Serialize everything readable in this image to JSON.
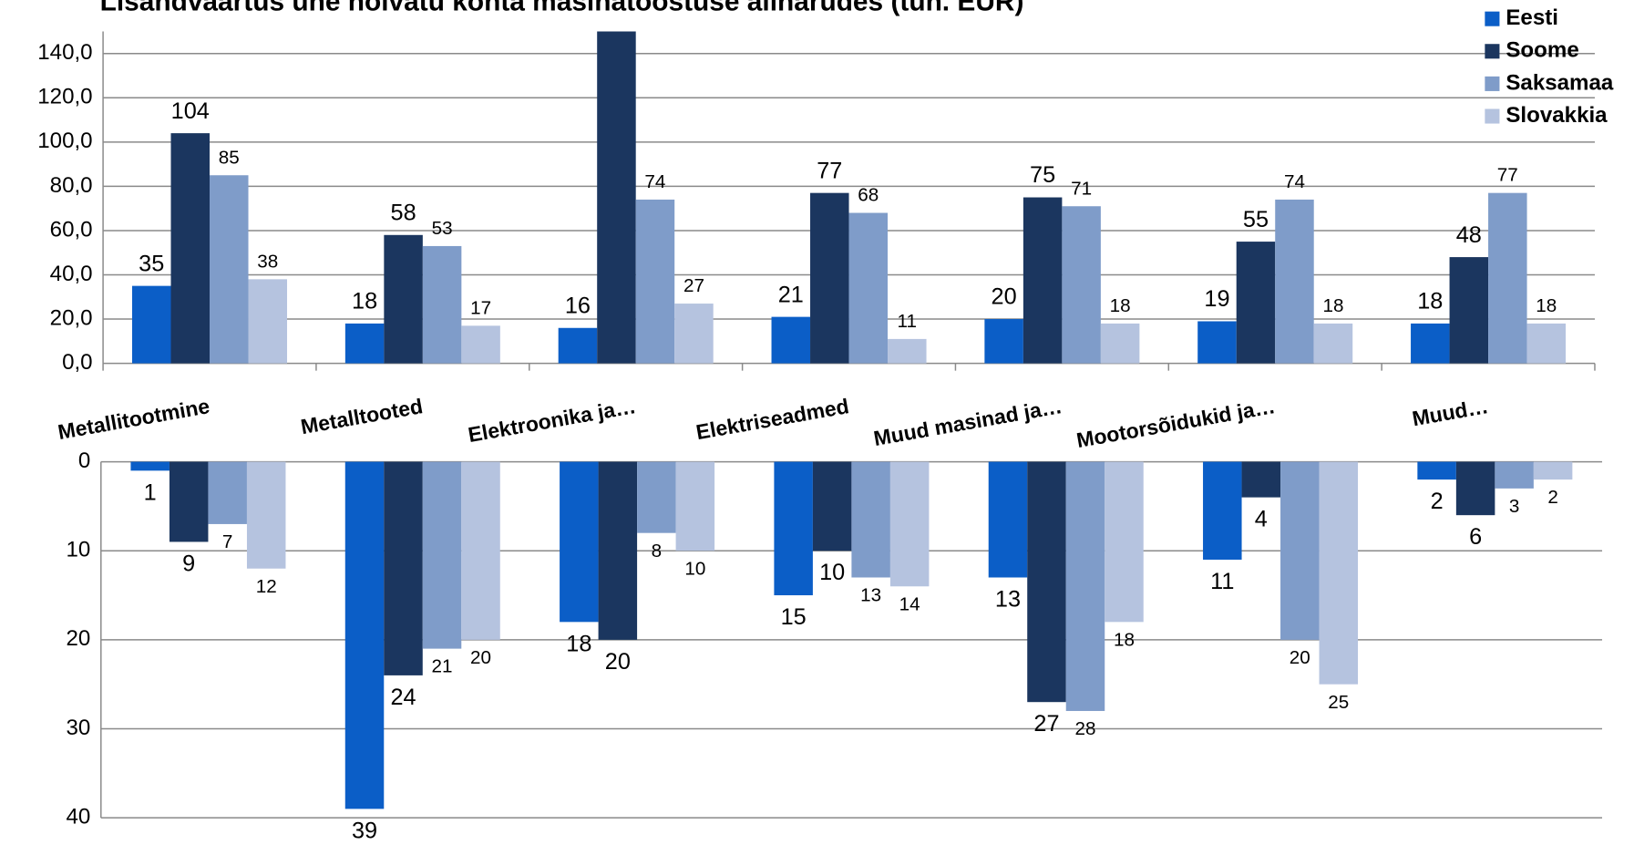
{
  "chart_data": [
    {
      "type": "bar",
      "title": "Lisandväärtus ühe hõivatu kohta masinatööstuse allharudes (tuh. EUR)",
      "categories": [
        "Metallitootmine",
        "Metalltooted",
        "Elektroonika ja…",
        "Elektriseadmed",
        "Muud masinad ja…",
        "Mootorsõidukid ja…",
        "Muud…"
      ],
      "series": [
        {
          "name": "Eesti",
          "color": "#0b5ec7",
          "values": [
            35,
            18,
            16,
            21,
            20,
            19,
            18
          ]
        },
        {
          "name": "Soome",
          "color": "#1b365f",
          "values": [
            104,
            58,
            155,
            77,
            75,
            55,
            48
          ]
        },
        {
          "name": "Saksamaa",
          "color": "#7f9cc9",
          "values": [
            85,
            53,
            74,
            68,
            71,
            74,
            77
          ]
        },
        {
          "name": "Slovakkia",
          "color": "#b5c3df",
          "values": [
            38,
            17,
            27,
            11,
            18,
            18,
            18
          ]
        }
      ],
      "ylim": [
        0,
        150
      ],
      "yticks": [
        {
          "value": 0,
          "label": "0,0"
        },
        {
          "value": 20,
          "label": "20,0"
        },
        {
          "value": 40,
          "label": "40,0"
        },
        {
          "value": 60,
          "label": "60,0"
        },
        {
          "value": 80,
          "label": "80,0"
        },
        {
          "value": 100,
          "label": "100,0"
        },
        {
          "value": 120,
          "label": "120,0"
        },
        {
          "value": 140,
          "label": "140,0"
        }
      ],
      "grid": true,
      "legend": "top-right"
    },
    {
      "type": "bar",
      "series": [
        {
          "color": "#0b5ec7",
          "values": [
            1,
            39,
            18,
            15,
            13,
            11,
            2
          ]
        },
        {
          "color": "#1b365f",
          "values": [
            9,
            24,
            20,
            10,
            27,
            4,
            6
          ]
        },
        {
          "color": "#7f9cc9",
          "values": [
            7,
            21,
            8,
            13,
            28,
            20,
            3
          ]
        },
        {
          "color": "#b5c3df",
          "values": [
            12,
            20,
            10,
            14,
            18,
            25,
            2
          ]
        }
      ],
      "ylim": [
        0,
        40
      ],
      "yticks": [
        0,
        10,
        20,
        30,
        40
      ],
      "y_inverted": true,
      "grid": true
    }
  ]
}
